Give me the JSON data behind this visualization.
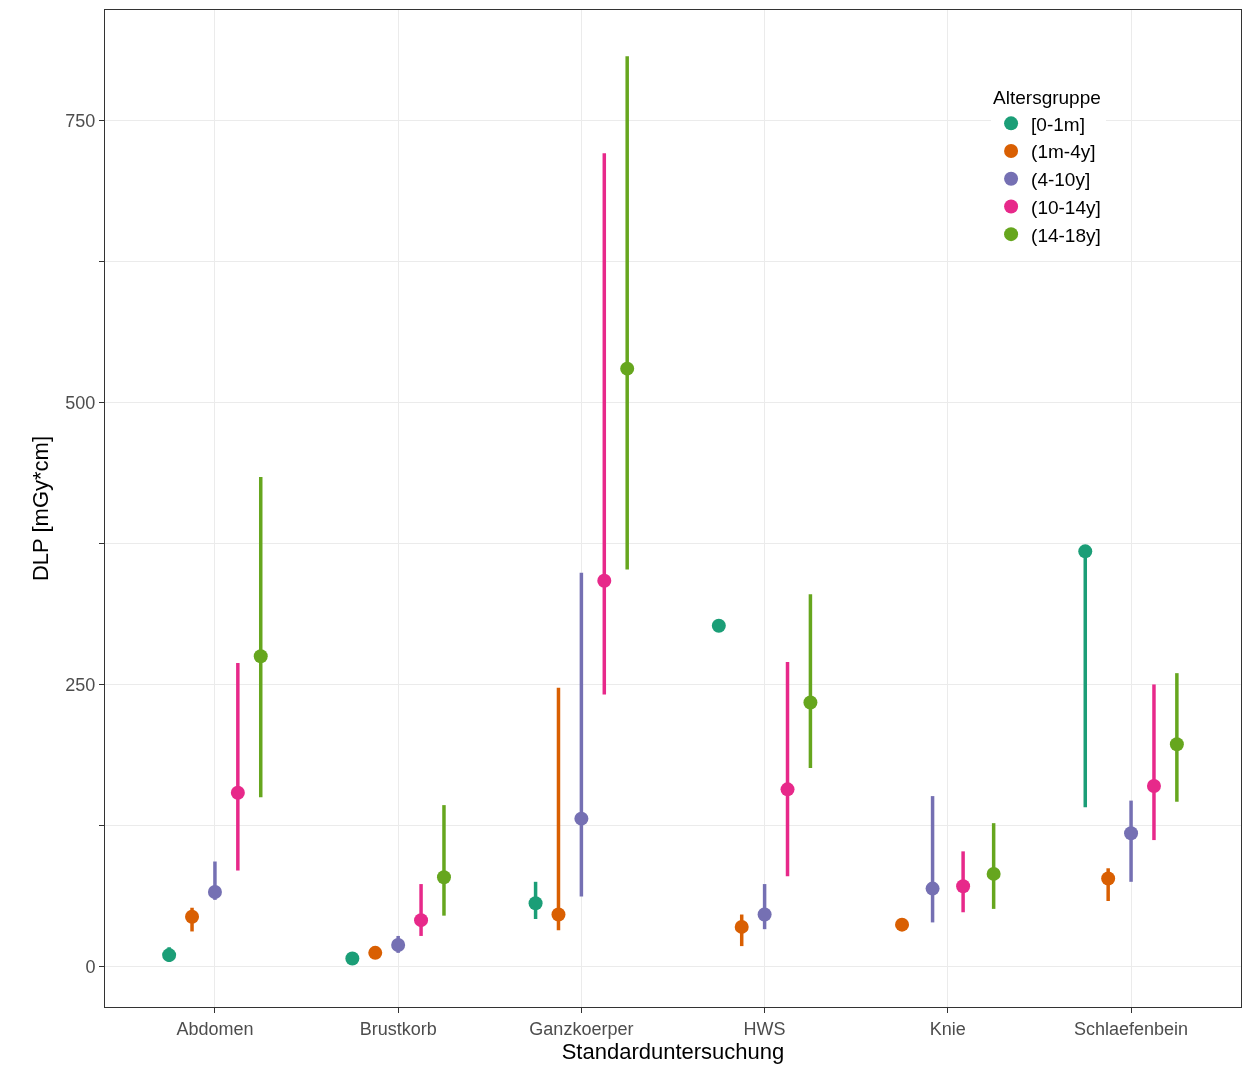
{
  "chart_data": {
    "type": "scatter",
    "xlabel": "Standarduntersuchung",
    "ylabel": "DLP [mGy*cm]",
    "legend_title": "Altersgruppe",
    "categories": [
      "Abdomen",
      "Brustkorb",
      "Ganzkoerper",
      "HWS",
      "Knie",
      "Schlaefenbein"
    ],
    "ylim": [
      -36,
      848
    ],
    "yticks": [
      0,
      {
        "value": 125,
        "label": null
      },
      250,
      {
        "value": 375,
        "label": null
      },
      500,
      {
        "value": 625,
        "label": null
      },
      750
    ],
    "grid": true,
    "legend": "top right",
    "marker": "circle",
    "series": [
      {
        "name": "[0-1m]",
        "color": "#1b9e77",
        "values": [
          10,
          7,
          56,
          302,
          null,
          368
        ],
        "errors": [
          [
            4,
            17
          ],
          null,
          [
            42,
            75
          ],
          null,
          null,
          [
            141,
            368
          ]
        ]
      },
      {
        "name": "(1m-4y]",
        "color": "#d95f02",
        "values": [
          44,
          12,
          46,
          35,
          37,
          78
        ],
        "errors": [
          [
            31,
            52
          ],
          null,
          [
            32,
            247
          ],
          [
            18,
            46
          ],
          null,
          [
            58,
            87
          ]
        ]
      },
      {
        "name": "(4-10y]",
        "color": "#7570b3",
        "values": [
          66,
          19,
          131,
          46,
          69,
          118
        ],
        "errors": [
          [
            59,
            93
          ],
          [
            12,
            27
          ],
          [
            62,
            349
          ],
          [
            33,
            73
          ],
          [
            39,
            151
          ],
          [
            75,
            147
          ]
        ]
      },
      {
        "name": "(10-14y]",
        "color": "#e7298a",
        "values": [
          154,
          41,
          342,
          157,
          71,
          160
        ],
        "errors": [
          [
            85,
            269
          ],
          [
            27,
            73
          ],
          [
            241,
            721
          ],
          [
            80,
            270
          ],
          [
            48,
            102
          ],
          [
            112,
            250
          ]
        ]
      },
      {
        "name": "(14-18y]",
        "color": "#66a61e",
        "values": [
          275,
          79,
          530,
          234,
          82,
          197
        ],
        "errors": [
          [
            150,
            434
          ],
          [
            45,
            143
          ],
          [
            352,
            807
          ],
          [
            176,
            330
          ],
          [
            51,
            127
          ],
          [
            146,
            260
          ]
        ]
      }
    ]
  }
}
